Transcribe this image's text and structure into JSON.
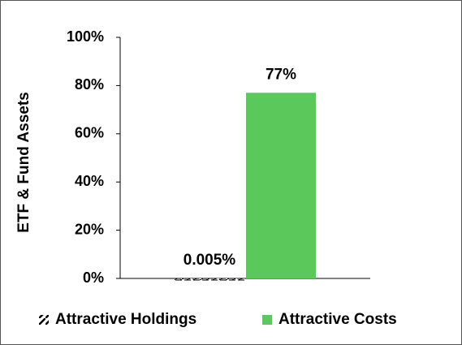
{
  "chart_data": {
    "type": "bar",
    "y_label": "ETF & Fund Assets",
    "categories": [
      null
    ],
    "series": [
      {
        "name": "Attractive Holdings",
        "color": "#000000",
        "hatch": true,
        "values": [
          0.005
        ],
        "value_labels": [
          "0.005%"
        ]
      },
      {
        "name": "Attractive Costs",
        "color": "#5ac85a",
        "hatch": false,
        "values": [
          77
        ],
        "value_labels": [
          "77%"
        ]
      }
    ],
    "ylim": [
      0,
      100
    ],
    "yticks": [
      {
        "value": 0,
        "label": "0%"
      },
      {
        "value": 20,
        "label": "20%"
      },
      {
        "value": 40,
        "label": "40%"
      },
      {
        "value": 60,
        "label": "60%"
      },
      {
        "value": 80,
        "label": "80%"
      },
      {
        "value": 100,
        "label": "100%"
      }
    ],
    "grid": false,
    "legend": "bottom"
  }
}
